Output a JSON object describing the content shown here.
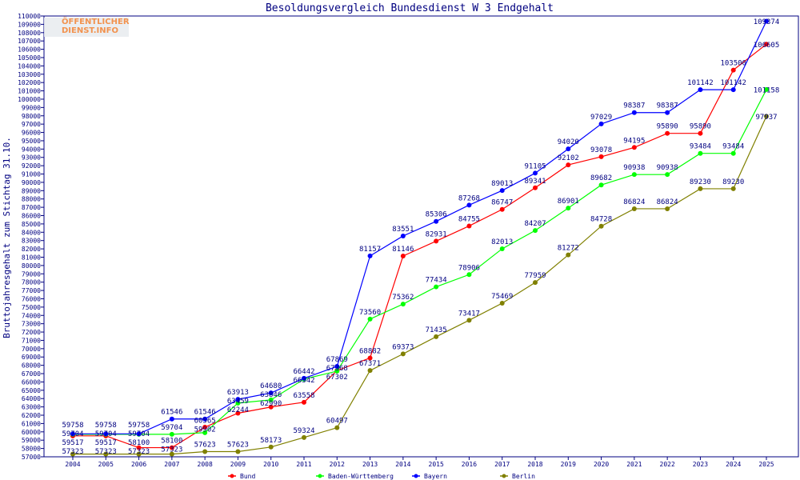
{
  "chart_data": {
    "type": "line",
    "title": "Besoldungsvergleich Bundesdienst W 3 Endgehalt",
    "ylabel": "Bruttojahresgehalt zum Stichtag 31.10.",
    "xlabel": "",
    "ylim": [
      57000,
      110000
    ],
    "ytick_step": 1000,
    "grid": false,
    "legend": "bottom",
    "logo_text": "ÖFFENTLICHER DIENST.INFO",
    "categories": [
      "2004",
      "2005",
      "2006",
      "2007",
      "2008",
      "2009",
      "2010",
      "2011",
      "2012",
      "2013",
      "2014",
      "2015",
      "2016",
      "2017",
      "2018",
      "2019",
      "2020",
      "2021",
      "2022",
      "2023",
      "2024",
      "2025"
    ],
    "series": [
      {
        "name": "Bund",
        "color": "#ff0000",
        "values": [
          59517,
          59517,
          58100,
          58100,
          60565,
          62244,
          62990,
          63558,
          67368,
          68882,
          81146,
          82931,
          84755,
          86747,
          89341,
          92102,
          93078,
          94195,
          95890,
          95890,
          103500,
          106605
        ]
      },
      {
        "name": "Baden-Württemberg",
        "color": "#00ff00",
        "values": [
          59704,
          59704,
          59704,
          59704,
          59902,
          63459,
          63846,
          66342,
          67302,
          73560,
          75362,
          77434,
          78906,
          82013,
          84207,
          86901,
          89682,
          90938,
          90938,
          93484,
          93484,
          101158
        ]
      },
      {
        "name": "Bayern",
        "color": "#0000ff",
        "values": [
          59758,
          59758,
          59758,
          61546,
          61546,
          63913,
          64680,
          66442,
          67869,
          81157,
          83551,
          85306,
          87268,
          89013,
          91105,
          94020,
          97029,
          98387,
          98387,
          101142,
          101142,
          109374
        ]
      },
      {
        "name": "Berlin",
        "color": "#808000",
        "values": [
          57323,
          57323,
          57323,
          57323,
          57623,
          57623,
          58173,
          59324,
          60497,
          67371,
          69373,
          71435,
          73417,
          75469,
          77959,
          81272,
          84728,
          86824,
          86824,
          89230,
          89230,
          97937
        ]
      }
    ]
  }
}
